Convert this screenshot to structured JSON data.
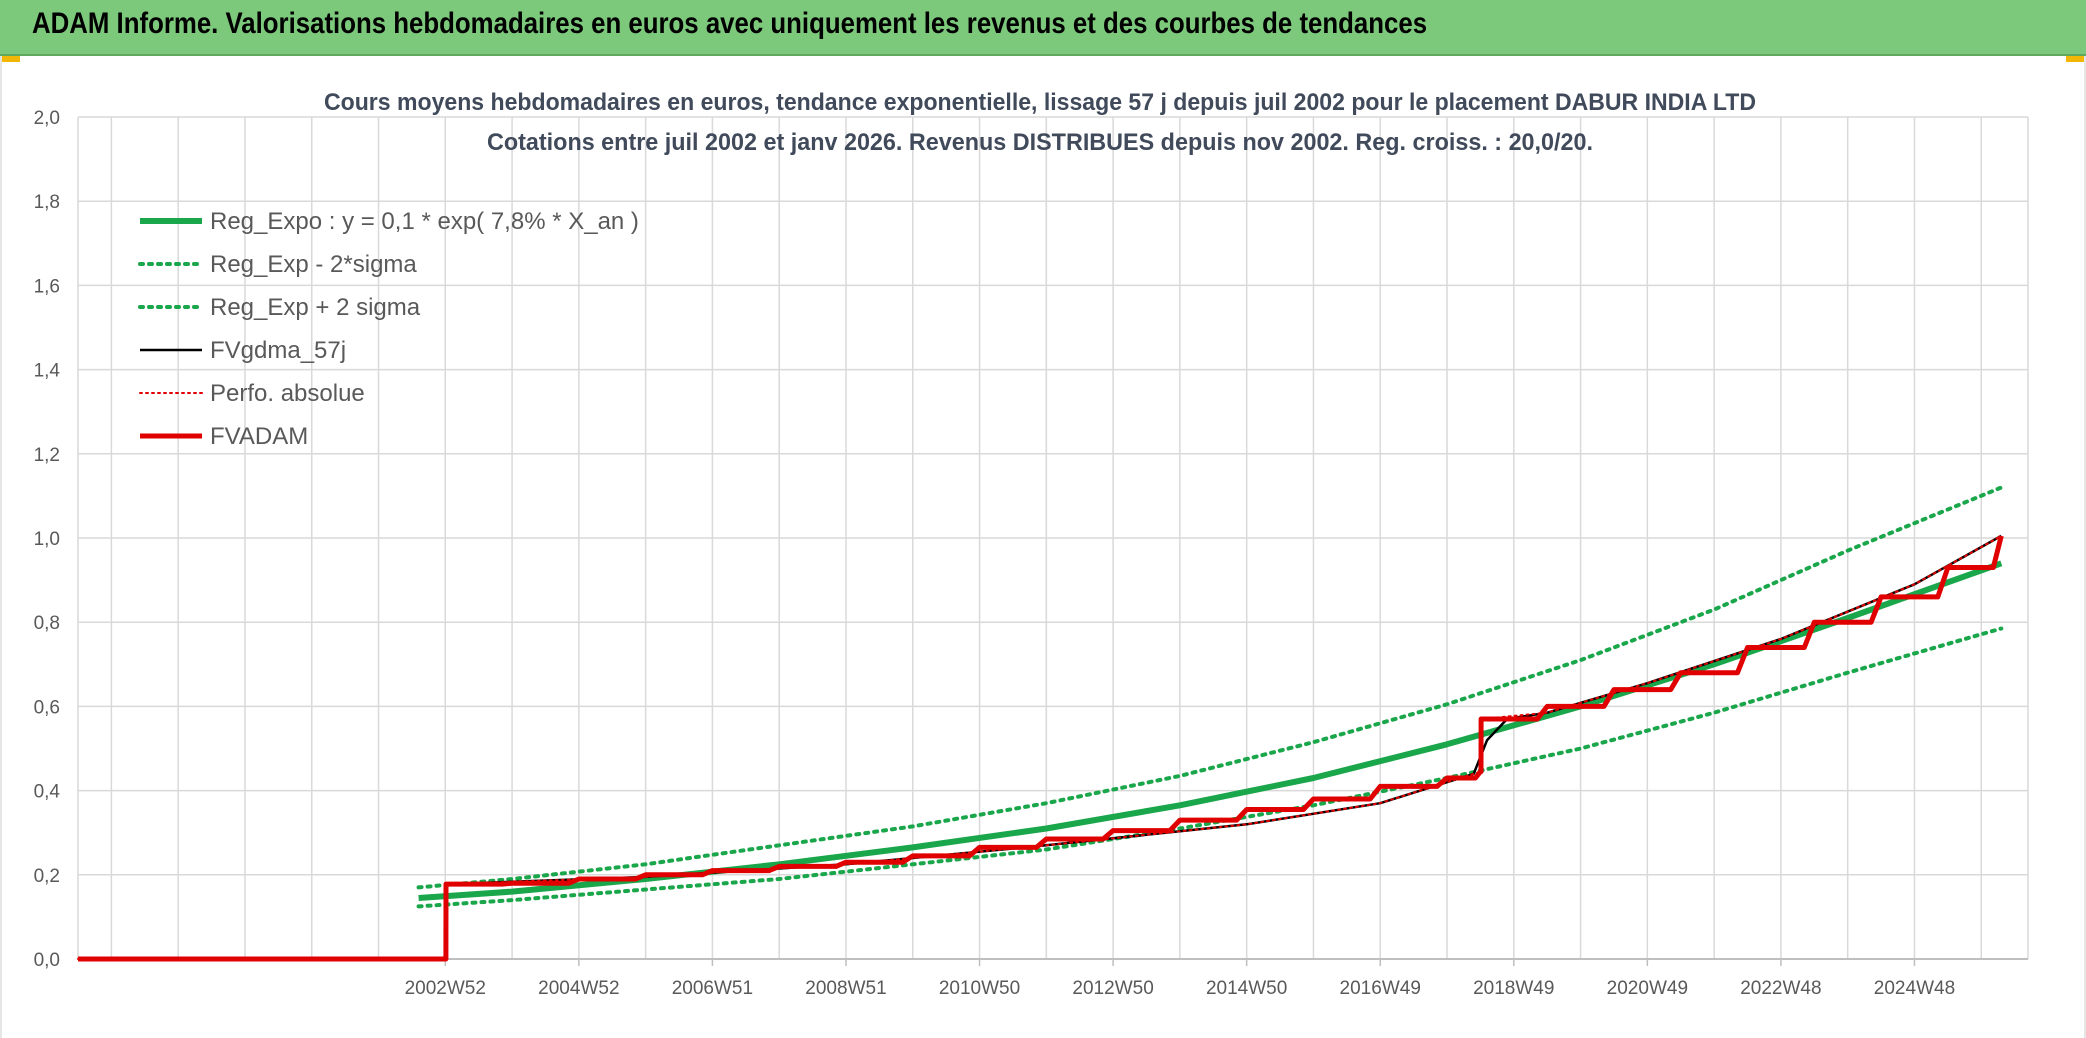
{
  "header": {
    "title": "ADAM Informe. Valorisations hebdomadaires en euros avec uniquement les revenus et des courbes de tendances"
  },
  "colors": {
    "banner": "#7dc97c",
    "reg_expo": "#1aa64a",
    "fvgdma": "#000000",
    "perfo": "#e00000",
    "fvadam": "#e00000",
    "grid": "#d9d9d9",
    "text": "#595959",
    "title_text": "#404a5a"
  },
  "chart_data": {
    "type": "line",
    "title": "Cours moyens hebdomadaires en euros, tendance exponentielle, lissage 57 j depuis juil 2002 pour le placement DABUR INDIA LTD",
    "subtitle": "Cotations entre juil 2002 et janv 2026. Revenus DISTRIBUES depuis nov 2002. Reg. croiss. : 20,0/20.",
    "xlabel": "",
    "ylabel": "",
    "x_range": [
      1997.5,
      2026.7
    ],
    "ylim": [
      0,
      2
    ],
    "yticks": [
      "0,0",
      "0,2",
      "0,4",
      "0,6",
      "0,8",
      "1,0",
      "1,2",
      "1,4",
      "1,6",
      "1,8",
      "2,0"
    ],
    "xticks": [
      {
        "label": "2002W52",
        "x": 2003.0
      },
      {
        "label": "2004W52",
        "x": 2005.0
      },
      {
        "label": "2006W51",
        "x": 2007.0
      },
      {
        "label": "2008W51",
        "x": 2009.0
      },
      {
        "label": "2010W50",
        "x": 2011.0
      },
      {
        "label": "2012W50",
        "x": 2013.0
      },
      {
        "label": "2014W50",
        "x": 2015.0
      },
      {
        "label": "2016W49",
        "x": 2017.0
      },
      {
        "label": "2018W49",
        "x": 2019.0
      },
      {
        "label": "2020W49",
        "x": 2021.0
      },
      {
        "label": "2022W48",
        "x": 2023.0
      },
      {
        "label": "2024W48",
        "x": 2025.0
      }
    ],
    "grid": true,
    "legend_position": "top-left",
    "series": [
      {
        "name": "Reg_Expo : y = 0,1 * exp( 7,8% *  X_an )",
        "style": "solid-thick",
        "color": "#1aa64a",
        "x": [
          2002.6,
          2004,
          2006,
          2008,
          2010,
          2012,
          2014,
          2016,
          2018,
          2020,
          2022,
          2024,
          2026.3
        ],
        "y": [
          0.145,
          0.16,
          0.19,
          0.225,
          0.265,
          0.31,
          0.365,
          0.43,
          0.51,
          0.6,
          0.7,
          0.81,
          0.94
        ]
      },
      {
        "name": "Reg_Exp - 2*sigma",
        "style": "dotted",
        "color": "#1aa64a",
        "x": [
          2002.6,
          2004,
          2006,
          2008,
          2010,
          2012,
          2014,
          2016,
          2018,
          2020,
          2022,
          2024,
          2026.3
        ],
        "y": [
          0.125,
          0.14,
          0.165,
          0.19,
          0.225,
          0.26,
          0.31,
          0.365,
          0.43,
          0.5,
          0.585,
          0.68,
          0.785
        ]
      },
      {
        "name": "Reg_Exp + 2 sigma",
        "style": "dotted",
        "color": "#1aa64a",
        "x": [
          2002.6,
          2004,
          2006,
          2008,
          2010,
          2012,
          2014,
          2016,
          2018,
          2020,
          2022,
          2024,
          2026.3
        ],
        "y": [
          0.17,
          0.19,
          0.225,
          0.27,
          0.315,
          0.37,
          0.435,
          0.515,
          0.605,
          0.71,
          0.83,
          0.97,
          1.12
        ]
      },
      {
        "name": "FVgdma_57j",
        "style": "solid-thin",
        "color": "#000000",
        "x": [
          1997.5,
          2003.0,
          2003.01,
          2006,
          2009,
          2012,
          2015,
          2017,
          2018.4,
          2018.6,
          2018.9,
          2019.5,
          2021,
          2023,
          2025,
          2026.3
        ],
        "y": [
          0,
          0,
          0.178,
          0.195,
          0.225,
          0.27,
          0.32,
          0.37,
          0.44,
          0.52,
          0.57,
          0.585,
          0.655,
          0.76,
          0.89,
          1.005
        ]
      },
      {
        "name": "Perfo. absolue",
        "style": "dotted-thin",
        "color": "#e00000",
        "x": [
          1997.5,
          2003.0,
          2003.01,
          2006,
          2009,
          2012,
          2015,
          2017,
          2018.5,
          2018.51,
          2019.5,
          2021,
          2023,
          2025,
          2026.3
        ],
        "y": [
          0,
          0,
          0.178,
          0.195,
          0.225,
          0.27,
          0.32,
          0.37,
          0.445,
          0.57,
          0.585,
          0.655,
          0.76,
          0.89,
          1.005
        ]
      },
      {
        "name": "FVADAM",
        "style": "solid-thick",
        "color": "#e00000",
        "stepped": true,
        "x": [
          1997.5,
          2003.0,
          2003.01,
          2004,
          2005,
          2006,
          2007,
          2008,
          2009,
          2010,
          2011,
          2012,
          2013,
          2014,
          2015,
          2016,
          2017,
          2018,
          2018.5,
          2018.51,
          2019.5,
          2020.5,
          2021.5,
          2022.5,
          2023.5,
          2024.5,
          2025.5,
          2026.3
        ],
        "y": [
          0,
          0,
          0.178,
          0.18,
          0.19,
          0.2,
          0.21,
          0.22,
          0.23,
          0.245,
          0.265,
          0.285,
          0.305,
          0.33,
          0.355,
          0.38,
          0.41,
          0.43,
          0.445,
          0.57,
          0.6,
          0.64,
          0.68,
          0.74,
          0.8,
          0.86,
          0.93,
          1.005
        ]
      }
    ]
  }
}
